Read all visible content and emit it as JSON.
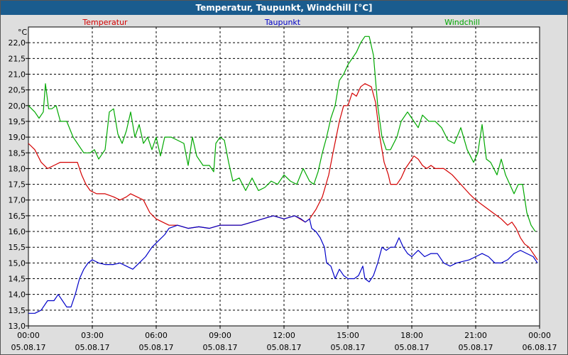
{
  "window": {
    "title": "Temperatur, Taupunkt, Windchill [°C]"
  },
  "chart_data": {
    "type": "line",
    "title": "Temperatur, Taupunkt, Windchill [°C]",
    "ylabel": "°C",
    "ylim": [
      13.0,
      22.5
    ],
    "xlim": [
      0,
      24
    ],
    "yticks": [
      "13,0",
      "13,5",
      "14,0",
      "14,5",
      "15,0",
      "15,5",
      "16,0",
      "16,5",
      "17,0",
      "17,5",
      "18,0",
      "18,5",
      "19,0",
      "19,5",
      "20,0",
      "20,5",
      "21,0",
      "21,5",
      "22,0"
    ],
    "xticks": [
      {
        "time": "00:00",
        "date": "05.08.17"
      },
      {
        "time": "03:00",
        "date": "05.08.17"
      },
      {
        "time": "06:00",
        "date": "05.08.17"
      },
      {
        "time": "09:00",
        "date": "05.08.17"
      },
      {
        "time": "12:00",
        "date": "05.08.17"
      },
      {
        "time": "15:00",
        "date": "05.08.17"
      },
      {
        "time": "18:00",
        "date": "05.08.17"
      },
      {
        "time": "21:00",
        "date": "05.08.17"
      },
      {
        "time": "00:00",
        "date": "06.08.17"
      }
    ],
    "grid": true,
    "series": [
      {
        "name": "Temperatur",
        "color": "#d40000",
        "points": [
          [
            0,
            18.8
          ],
          [
            0.3,
            18.6
          ],
          [
            0.6,
            18.2
          ],
          [
            0.9,
            18.0
          ],
          [
            1.2,
            18.1
          ],
          [
            1.5,
            18.2
          ],
          [
            2.0,
            18.2
          ],
          [
            2.3,
            18.2
          ],
          [
            2.5,
            17.8
          ],
          [
            2.7,
            17.5
          ],
          [
            2.9,
            17.3
          ],
          [
            3.2,
            17.2
          ],
          [
            3.6,
            17.2
          ],
          [
            4.0,
            17.1
          ],
          [
            4.3,
            17.0
          ],
          [
            4.6,
            17.1
          ],
          [
            4.8,
            17.2
          ],
          [
            5.1,
            17.1
          ],
          [
            5.4,
            17.0
          ],
          [
            5.7,
            16.6
          ],
          [
            6.0,
            16.4
          ],
          [
            6.3,
            16.3
          ],
          [
            6.6,
            16.2
          ],
          [
            7.0,
            16.2
          ],
          [
            7.5,
            16.1
          ],
          [
            8.0,
            16.15
          ],
          [
            8.5,
            16.1
          ],
          [
            9.0,
            16.2
          ],
          [
            9.5,
            16.2
          ],
          [
            10.0,
            16.2
          ],
          [
            10.5,
            16.3
          ],
          [
            11.0,
            16.4
          ],
          [
            11.5,
            16.5
          ],
          [
            12.0,
            16.4
          ],
          [
            12.5,
            16.5
          ],
          [
            13.0,
            16.3
          ],
          [
            13.2,
            16.4
          ],
          [
            13.5,
            16.7
          ],
          [
            13.8,
            17.1
          ],
          [
            14.1,
            17.8
          ],
          [
            14.3,
            18.5
          ],
          [
            14.6,
            19.5
          ],
          [
            14.8,
            20.0
          ],
          [
            15.0,
            20.0
          ],
          [
            15.2,
            20.4
          ],
          [
            15.4,
            20.3
          ],
          [
            15.6,
            20.6
          ],
          [
            15.8,
            20.7
          ],
          [
            16.1,
            20.6
          ],
          [
            16.3,
            20.1
          ],
          [
            16.5,
            19.0
          ],
          [
            16.7,
            18.2
          ],
          [
            16.9,
            17.8
          ],
          [
            17.0,
            17.5
          ],
          [
            17.3,
            17.5
          ],
          [
            17.5,
            17.7
          ],
          [
            17.7,
            18.0
          ],
          [
            17.9,
            18.2
          ],
          [
            18.1,
            18.4
          ],
          [
            18.3,
            18.3
          ],
          [
            18.5,
            18.1
          ],
          [
            18.7,
            18.0
          ],
          [
            18.9,
            18.1
          ],
          [
            19.1,
            18.0
          ],
          [
            19.5,
            18.0
          ],
          [
            19.9,
            17.8
          ],
          [
            20.3,
            17.5
          ],
          [
            20.7,
            17.2
          ],
          [
            21.0,
            17.0
          ],
          [
            21.4,
            16.8
          ],
          [
            21.8,
            16.6
          ],
          [
            22.2,
            16.4
          ],
          [
            22.5,
            16.2
          ],
          [
            22.7,
            16.3
          ],
          [
            22.9,
            16.1
          ],
          [
            23.1,
            15.8
          ],
          [
            23.3,
            15.6
          ],
          [
            23.5,
            15.5
          ],
          [
            23.7,
            15.3
          ],
          [
            23.9,
            15.1
          ]
        ]
      },
      {
        "name": "Taupunkt",
        "color": "#0000c8",
        "points": [
          [
            0,
            13.4
          ],
          [
            0.3,
            13.4
          ],
          [
            0.6,
            13.5
          ],
          [
            0.9,
            13.8
          ],
          [
            1.2,
            13.8
          ],
          [
            1.4,
            14.0
          ],
          [
            1.6,
            13.8
          ],
          [
            1.8,
            13.6
          ],
          [
            2.0,
            13.6
          ],
          [
            2.2,
            14.0
          ],
          [
            2.4,
            14.5
          ],
          [
            2.6,
            14.8
          ],
          [
            2.8,
            15.0
          ],
          [
            3.0,
            15.1
          ],
          [
            3.3,
            15.0
          ],
          [
            3.6,
            14.95
          ],
          [
            4.0,
            14.95
          ],
          [
            4.3,
            15.0
          ],
          [
            4.6,
            14.9
          ],
          [
            4.9,
            14.8
          ],
          [
            5.2,
            15.0
          ],
          [
            5.5,
            15.2
          ],
          [
            5.8,
            15.5
          ],
          [
            6.1,
            15.7
          ],
          [
            6.4,
            15.9
          ],
          [
            6.6,
            16.1
          ],
          [
            7.0,
            16.2
          ],
          [
            7.5,
            16.1
          ],
          [
            8.0,
            16.15
          ],
          [
            8.5,
            16.1
          ],
          [
            9.0,
            16.2
          ],
          [
            9.5,
            16.2
          ],
          [
            10.0,
            16.2
          ],
          [
            10.5,
            16.3
          ],
          [
            11.0,
            16.4
          ],
          [
            11.5,
            16.5
          ],
          [
            12.0,
            16.4
          ],
          [
            12.5,
            16.5
          ],
          [
            12.8,
            16.4
          ],
          [
            13.0,
            16.3
          ],
          [
            13.2,
            16.4
          ],
          [
            13.3,
            16.1
          ],
          [
            13.5,
            16.0
          ],
          [
            13.7,
            15.8
          ],
          [
            13.9,
            15.5
          ],
          [
            14.0,
            15.0
          ],
          [
            14.2,
            14.9
          ],
          [
            14.4,
            14.5
          ],
          [
            14.6,
            14.8
          ],
          [
            14.8,
            14.6
          ],
          [
            15.0,
            14.5
          ],
          [
            15.3,
            14.5
          ],
          [
            15.5,
            14.6
          ],
          [
            15.7,
            14.9
          ],
          [
            15.8,
            14.5
          ],
          [
            16.0,
            14.4
          ],
          [
            16.2,
            14.6
          ],
          [
            16.4,
            15.0
          ],
          [
            16.6,
            15.5
          ],
          [
            16.8,
            15.4
          ],
          [
            17.0,
            15.5
          ],
          [
            17.2,
            15.5
          ],
          [
            17.4,
            15.8
          ],
          [
            17.6,
            15.5
          ],
          [
            17.8,
            15.3
          ],
          [
            18.0,
            15.2
          ],
          [
            18.3,
            15.4
          ],
          [
            18.6,
            15.2
          ],
          [
            18.9,
            15.3
          ],
          [
            19.2,
            15.3
          ],
          [
            19.5,
            15.0
          ],
          [
            19.8,
            14.9
          ],
          [
            20.1,
            15.0
          ],
          [
            20.4,
            15.05
          ],
          [
            20.7,
            15.1
          ],
          [
            21.0,
            15.2
          ],
          [
            21.3,
            15.3
          ],
          [
            21.6,
            15.2
          ],
          [
            21.9,
            15.0
          ],
          [
            22.2,
            15.0
          ],
          [
            22.5,
            15.1
          ],
          [
            22.8,
            15.3
          ],
          [
            23.1,
            15.4
          ],
          [
            23.4,
            15.3
          ],
          [
            23.7,
            15.2
          ],
          [
            23.9,
            15.0
          ]
        ]
      },
      {
        "name": "Windchill",
        "color": "#00a800",
        "points": [
          [
            0,
            20.0
          ],
          [
            0.3,
            19.8
          ],
          [
            0.5,
            19.6
          ],
          [
            0.7,
            19.8
          ],
          [
            0.8,
            20.7
          ],
          [
            0.95,
            19.9
          ],
          [
            1.1,
            19.9
          ],
          [
            1.3,
            20.0
          ],
          [
            1.5,
            19.5
          ],
          [
            1.8,
            19.5
          ],
          [
            2.1,
            19.0
          ],
          [
            2.3,
            18.8
          ],
          [
            2.6,
            18.5
          ],
          [
            2.9,
            18.5
          ],
          [
            3.1,
            18.6
          ],
          [
            3.3,
            18.3
          ],
          [
            3.6,
            18.6
          ],
          [
            3.8,
            19.8
          ],
          [
            4.0,
            19.9
          ],
          [
            4.2,
            19.1
          ],
          [
            4.4,
            18.8
          ],
          [
            4.6,
            19.2
          ],
          [
            4.8,
            19.8
          ],
          [
            5.0,
            19.0
          ],
          [
            5.2,
            19.4
          ],
          [
            5.4,
            18.8
          ],
          [
            5.6,
            19.0
          ],
          [
            5.8,
            18.6
          ],
          [
            6.0,
            19.0
          ],
          [
            6.2,
            18.4
          ],
          [
            6.4,
            19.0
          ],
          [
            6.7,
            19.0
          ],
          [
            7.0,
            18.9
          ],
          [
            7.3,
            18.8
          ],
          [
            7.5,
            18.1
          ],
          [
            7.7,
            19.0
          ],
          [
            7.9,
            18.4
          ],
          [
            8.2,
            18.1
          ],
          [
            8.5,
            18.1
          ],
          [
            8.7,
            17.9
          ],
          [
            8.8,
            18.8
          ],
          [
            9.0,
            19.0
          ],
          [
            9.2,
            18.9
          ],
          [
            9.4,
            18.2
          ],
          [
            9.6,
            17.6
          ],
          [
            9.9,
            17.7
          ],
          [
            10.2,
            17.3
          ],
          [
            10.5,
            17.7
          ],
          [
            10.8,
            17.3
          ],
          [
            11.1,
            17.4
          ],
          [
            11.4,
            17.6
          ],
          [
            11.7,
            17.5
          ],
          [
            12.0,
            17.8
          ],
          [
            12.3,
            17.6
          ],
          [
            12.6,
            17.5
          ],
          [
            12.9,
            18.0
          ],
          [
            13.2,
            17.6
          ],
          [
            13.4,
            17.5
          ],
          [
            13.6,
            17.9
          ],
          [
            13.8,
            18.5
          ],
          [
            14.0,
            19.0
          ],
          [
            14.2,
            19.6
          ],
          [
            14.4,
            20.0
          ],
          [
            14.6,
            20.8
          ],
          [
            14.8,
            21.0
          ],
          [
            15.0,
            21.3
          ],
          [
            15.2,
            21.5
          ],
          [
            15.4,
            21.7
          ],
          [
            15.6,
            22.0
          ],
          [
            15.8,
            22.2
          ],
          [
            16.0,
            22.2
          ],
          [
            16.2,
            21.6
          ],
          [
            16.4,
            20.0
          ],
          [
            16.6,
            19.0
          ],
          [
            16.8,
            18.6
          ],
          [
            17.0,
            18.6
          ],
          [
            17.3,
            19.0
          ],
          [
            17.5,
            19.5
          ],
          [
            17.8,
            19.8
          ],
          [
            18.0,
            19.6
          ],
          [
            18.3,
            19.3
          ],
          [
            18.5,
            19.7
          ],
          [
            18.8,
            19.5
          ],
          [
            19.1,
            19.5
          ],
          [
            19.4,
            19.3
          ],
          [
            19.7,
            18.9
          ],
          [
            20.0,
            18.8
          ],
          [
            20.3,
            19.3
          ],
          [
            20.6,
            18.6
          ],
          [
            20.9,
            18.2
          ],
          [
            21.1,
            18.5
          ],
          [
            21.3,
            19.4
          ],
          [
            21.5,
            18.3
          ],
          [
            21.7,
            18.2
          ],
          [
            22.0,
            17.8
          ],
          [
            22.2,
            18.3
          ],
          [
            22.4,
            17.8
          ],
          [
            22.6,
            17.5
          ],
          [
            22.8,
            17.2
          ],
          [
            23.0,
            17.5
          ],
          [
            23.2,
            17.5
          ],
          [
            23.4,
            16.6
          ],
          [
            23.6,
            16.2
          ],
          [
            23.8,
            16.0
          ]
        ]
      }
    ]
  }
}
